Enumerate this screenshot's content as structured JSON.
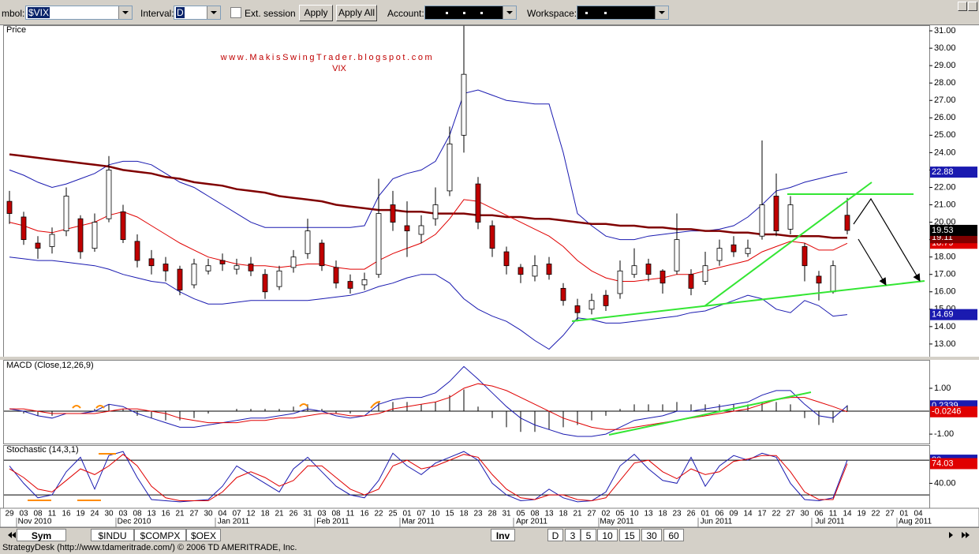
{
  "toolbar": {
    "symbol_label": "mbol:",
    "symbol": "$VIX",
    "interval_label": "Interval:",
    "interval": "D",
    "ext_session": "Ext. session",
    "apply": "Apply",
    "apply_all": "Apply All",
    "account_label": "Account:",
    "workspace_label": "Workspace:"
  },
  "x_axis": {
    "days": [
      "29",
      "03",
      "08",
      "11",
      "16",
      "19",
      "24",
      "30",
      "03",
      "08",
      "13",
      "16",
      "21",
      "27",
      "30",
      "04",
      "07",
      "12",
      "18",
      "21",
      "26",
      "31",
      "03",
      "08",
      "11",
      "16",
      "22",
      "25",
      "01",
      "07",
      "10",
      "15",
      "18",
      "23",
      "28",
      "31",
      "05",
      "08",
      "13",
      "18",
      "21",
      "27",
      "02",
      "05",
      "10",
      "13",
      "18",
      "23",
      "26",
      "01",
      "06",
      "09",
      "14",
      "17",
      "22",
      "27",
      "30",
      "06",
      "11",
      "14",
      "19",
      "22",
      "27",
      "01",
      "04"
    ],
    "months": [
      "Nov 2010",
      "Dec 2010",
      "Jan 2011",
      "Feb 2011",
      "Mar 2011",
      "Apr 2011",
      "May 2011",
      "Jun 2011",
      "Jul 2011",
      "Aug 2011"
    ]
  },
  "chart_data": [
    {
      "type": "candlestick",
      "title": "Price",
      "watermark": "www.MakisSwingTrader.blogspot.com",
      "subtitle": "VIX",
      "up_color": "#ffffff",
      "down_color": "#c00000",
      "close_color": "#000000",
      "ylim": [
        12.27,
        31.32
      ],
      "yticks": [
        {
          "value": 13,
          "label": "13.00"
        },
        {
          "value": 14,
          "label": "14.00"
        },
        {
          "value": 15,
          "label": "15.00"
        },
        {
          "value": 16,
          "label": "16.00"
        },
        {
          "value": 17,
          "label": "17.00"
        },
        {
          "value": 18,
          "label": "18.00"
        },
        {
          "value": 19,
          "label": "19.00"
        },
        {
          "value": 20,
          "label": "20.00"
        },
        {
          "value": 21,
          "label": "21.00"
        },
        {
          "value": 22,
          "label": "22.00"
        },
        {
          "value": 23,
          "label": "23.00"
        },
        {
          "value": 24,
          "label": "24.00"
        },
        {
          "value": 25,
          "label": "25.00"
        },
        {
          "value": 26,
          "label": "26.00"
        },
        {
          "value": 27,
          "label": "27.00"
        },
        {
          "value": 28,
          "label": "28.00"
        },
        {
          "value": 29,
          "label": "29.00"
        },
        {
          "value": 30,
          "label": "30.00"
        },
        {
          "value": 31,
          "label": "31.00"
        }
      ],
      "ohlc": [
        [
          21.2,
          21.8,
          19.9,
          20.5
        ],
        [
          20.3,
          20.6,
          18.7,
          19.0
        ],
        [
          18.8,
          19.2,
          17.9,
          18.5
        ],
        [
          18.6,
          19.7,
          18.2,
          19.3
        ],
        [
          19.5,
          22.0,
          19.2,
          21.5
        ],
        [
          20.2,
          20.4,
          17.9,
          18.3
        ],
        [
          18.5,
          20.5,
          18.3,
          20.0
        ],
        [
          20.2,
          23.8,
          20.0,
          23.0
        ],
        [
          20.6,
          21.0,
          18.8,
          19.0
        ],
        [
          18.9,
          19.3,
          17.4,
          17.8
        ],
        [
          17.9,
          18.4,
          17.0,
          17.5
        ],
        [
          17.6,
          18.0,
          16.6,
          17.2
        ],
        [
          17.3,
          17.5,
          15.8,
          16.1
        ],
        [
          16.4,
          17.9,
          16.2,
          17.6
        ],
        [
          17.2,
          17.9,
          17.0,
          17.5
        ],
        [
          17.8,
          18.2,
          17.2,
          17.6
        ],
        [
          17.3,
          17.9,
          17.0,
          17.5
        ],
        [
          17.6,
          18.0,
          16.9,
          17.2
        ],
        [
          17.0,
          17.3,
          15.6,
          16.0
        ],
        [
          16.3,
          17.5,
          16.1,
          17.2
        ],
        [
          17.4,
          18.4,
          17.1,
          18.0
        ],
        [
          18.2,
          20.2,
          17.9,
          19.5
        ],
        [
          18.8,
          19.0,
          17.2,
          17.5
        ],
        [
          17.4,
          17.8,
          16.2,
          16.5
        ],
        [
          16.6,
          17.0,
          15.9,
          16.2
        ],
        [
          16.4,
          17.1,
          16.1,
          16.7
        ],
        [
          17.0,
          22.5,
          16.8,
          20.5
        ],
        [
          21.0,
          21.8,
          19.5,
          20.0
        ],
        [
          19.8,
          21.2,
          18.0,
          19.5
        ],
        [
          19.3,
          20.4,
          18.8,
          19.8
        ],
        [
          20.2,
          22.0,
          19.8,
          21.0
        ],
        [
          21.8,
          25.5,
          21.5,
          24.5
        ],
        [
          25.0,
          31.3,
          24.0,
          28.5
        ],
        [
          22.2,
          22.6,
          19.6,
          20.0
        ],
        [
          19.8,
          20.1,
          18.0,
          18.5
        ],
        [
          18.3,
          18.6,
          17.0,
          17.5
        ],
        [
          17.4,
          17.6,
          16.5,
          17.0
        ],
        [
          16.9,
          18.1,
          16.6,
          17.5
        ],
        [
          17.6,
          18.0,
          16.7,
          17.0
        ],
        [
          16.2,
          16.5,
          15.2,
          15.5
        ],
        [
          15.2,
          15.6,
          14.3,
          14.8
        ],
        [
          15.0,
          15.9,
          14.7,
          15.5
        ],
        [
          15.8,
          16.1,
          14.9,
          15.2
        ],
        [
          15.9,
          17.8,
          15.6,
          17.2
        ],
        [
          17.0,
          18.5,
          16.8,
          17.5
        ],
        [
          17.6,
          17.9,
          16.6,
          17.0
        ],
        [
          17.2,
          17.3,
          15.9,
          16.5
        ],
        [
          17.2,
          20.5,
          17.0,
          19.0
        ],
        [
          17.0,
          17.3,
          15.8,
          16.2
        ],
        [
          16.6,
          18.3,
          16.4,
          17.5
        ],
        [
          17.8,
          19.0,
          17.5,
          18.5
        ],
        [
          18.7,
          19.2,
          18.0,
          18.3
        ],
        [
          18.2,
          19.0,
          18.0,
          18.5
        ],
        [
          19.2,
          24.7,
          19.0,
          21.0
        ],
        [
          21.5,
          22.8,
          19.2,
          19.5
        ],
        [
          19.6,
          21.5,
          19.3,
          21.0
        ],
        [
          18.6,
          18.8,
          16.6,
          17.5
        ],
        [
          16.9,
          17.2,
          15.5,
          16.5
        ],
        [
          16.0,
          17.8,
          15.9,
          17.5
        ],
        [
          20.4,
          21.4,
          19.3,
          19.53
        ],
        null,
        null,
        null,
        null,
        null
      ],
      "overlays": [
        {
          "color": "#1a1ab0",
          "width": 1,
          "values": [
            23.0,
            22.7,
            22.3,
            22.0,
            22.2,
            22.5,
            22.8,
            23.3,
            23.5,
            23.5,
            23.3,
            22.8,
            22.3,
            22.0,
            21.5,
            21.0,
            20.5,
            20.0,
            19.7,
            19.7,
            19.7,
            19.7,
            19.7,
            19.7,
            19.7,
            19.8,
            21.5,
            22.5,
            22.8,
            23.0,
            23.5,
            25.0,
            27.4,
            27.6,
            27.3,
            27.0,
            26.9,
            26.8,
            26.8,
            24.0,
            20.5,
            19.8,
            19.2,
            19.0,
            19.0,
            19.2,
            19.3,
            19.4,
            19.5,
            19.5,
            19.6,
            19.8,
            20.3,
            21.0,
            21.8,
            22.0,
            22.3,
            22.5,
            22.7,
            22.88,
            null,
            null,
            null,
            null,
            null
          ]
        },
        {
          "color": "#1a1ab0",
          "width": 1,
          "values": [
            18.0,
            17.9,
            17.8,
            17.8,
            17.7,
            17.6,
            17.5,
            17.3,
            17.0,
            16.8,
            16.6,
            16.5,
            16.0,
            15.6,
            15.3,
            15.3,
            15.4,
            15.5,
            15.5,
            15.5,
            15.5,
            15.5,
            15.6,
            15.7,
            15.8,
            16.0,
            16.3,
            16.5,
            16.8,
            17.0,
            17.0,
            16.5,
            15.6,
            15.0,
            14.6,
            14.3,
            13.8,
            13.2,
            12.7,
            13.5,
            14.5,
            14.4,
            14.2,
            14.2,
            14.3,
            14.4,
            14.5,
            14.6,
            14.8,
            14.9,
            15.2,
            15.5,
            15.8,
            15.6,
            15.0,
            14.8,
            15.5,
            15.2,
            14.6,
            14.69,
            null,
            null,
            null,
            null,
            null
          ]
        },
        {
          "color": "#800000",
          "width": 2.5,
          "values": [
            23.9,
            23.8,
            23.7,
            23.6,
            23.5,
            23.4,
            23.3,
            23.2,
            23.0,
            22.9,
            22.8,
            22.6,
            22.5,
            22.3,
            22.2,
            22.1,
            21.9,
            21.8,
            21.7,
            21.5,
            21.4,
            21.3,
            21.2,
            21.0,
            20.9,
            20.8,
            20.7,
            20.7,
            20.6,
            20.6,
            20.5,
            20.5,
            20.5,
            20.4,
            20.4,
            20.3,
            20.3,
            20.2,
            20.2,
            20.1,
            20.0,
            19.9,
            19.9,
            19.8,
            19.8,
            19.7,
            19.7,
            19.6,
            19.6,
            19.5,
            19.5,
            19.4,
            19.4,
            19.3,
            19.3,
            19.2,
            19.2,
            19.2,
            19.1,
            19.11,
            null,
            null,
            null,
            null,
            null
          ]
        },
        {
          "color": "#e00000",
          "width": 1,
          "values": [
            20.0,
            19.8,
            19.5,
            19.4,
            19.6,
            19.8,
            20.0,
            20.4,
            20.6,
            20.3,
            19.8,
            19.3,
            18.8,
            18.4,
            18.0,
            17.8,
            17.6,
            17.5,
            17.5,
            17.4,
            17.5,
            17.6,
            17.6,
            17.4,
            17.3,
            17.3,
            17.8,
            18.2,
            18.5,
            18.8,
            19.3,
            20.2,
            21.3,
            21.2,
            20.8,
            20.4,
            20.0,
            19.6,
            19.2,
            18.6,
            17.8,
            17.2,
            16.8,
            16.6,
            16.6,
            16.7,
            16.8,
            17.0,
            17.0,
            17.2,
            17.4,
            17.6,
            17.8,
            18.3,
            18.6,
            18.9,
            18.8,
            18.4,
            18.4,
            18.79,
            null,
            null,
            null,
            null,
            null
          ]
        }
      ]
    },
    {
      "type": "macd",
      "title": "MACD (Close,12,26,9)",
      "ylim": [
        -1.41,
        2.24
      ],
      "yticks": [
        {
          "value": 1,
          "label": "1.00"
        },
        {
          "value": -1,
          "label": "-1.00"
        }
      ],
      "levels": [
        0
      ],
      "histogram_color": "#000000",
      "histogram": [
        0.0,
        -0.1,
        -0.2,
        -0.2,
        0.0,
        0.0,
        0.1,
        0.3,
        0.1,
        -0.2,
        -0.3,
        -0.4,
        -0.4,
        -0.3,
        -0.1,
        0.0,
        0.1,
        0.1,
        0.1,
        0.1,
        0.2,
        0.3,
        0.1,
        -0.1,
        -0.1,
        0.0,
        0.4,
        0.4,
        0.4,
        0.3,
        0.4,
        0.7,
        0.95,
        0.2,
        -0.3,
        -0.7,
        -0.9,
        -0.9,
        -0.8,
        -0.7,
        -0.6,
        -0.4,
        -0.2,
        0.1,
        0.3,
        0.3,
        0.3,
        0.4,
        0.3,
        0.3,
        0.3,
        0.3,
        0.3,
        0.4,
        0.4,
        0.3,
        -0.3,
        -0.6,
        -0.5,
        0.26,
        null,
        null,
        null,
        null,
        null
      ],
      "series": [
        {
          "color": "#1a1ab0",
          "values": [
            0.1,
            0.0,
            -0.2,
            -0.3,
            -0.1,
            -0.1,
            0.0,
            0.3,
            0.2,
            -0.1,
            -0.3,
            -0.5,
            -0.7,
            -0.7,
            -0.6,
            -0.5,
            -0.4,
            -0.3,
            -0.3,
            -0.2,
            -0.1,
            0.1,
            0.0,
            -0.2,
            -0.3,
            -0.2,
            0.3,
            0.5,
            0.6,
            0.6,
            0.8,
            1.3,
            1.95,
            1.4,
            0.8,
            0.2,
            -0.3,
            -0.6,
            -0.8,
            -1.0,
            -1.1,
            -1.1,
            -1.0,
            -0.7,
            -0.4,
            -0.3,
            -0.2,
            0.0,
            0.0,
            0.1,
            0.2,
            0.3,
            0.4,
            0.7,
            0.9,
            0.9,
            0.3,
            -0.2,
            -0.3,
            0.2339,
            null,
            null,
            null,
            null,
            null
          ]
        },
        {
          "color": "#e00000",
          "values": [
            0.1,
            0.1,
            0.0,
            -0.1,
            -0.1,
            -0.1,
            -0.1,
            0.0,
            0.1,
            0.1,
            0.0,
            -0.1,
            -0.3,
            -0.4,
            -0.5,
            -0.5,
            -0.5,
            -0.4,
            -0.4,
            -0.3,
            -0.3,
            -0.2,
            -0.1,
            -0.1,
            -0.2,
            -0.2,
            -0.1,
            0.1,
            0.2,
            0.3,
            0.4,
            0.6,
            1.0,
            1.2,
            1.1,
            0.9,
            0.6,
            0.3,
            0.0,
            -0.3,
            -0.5,
            -0.7,
            -0.8,
            -0.8,
            -0.7,
            -0.6,
            -0.5,
            -0.4,
            -0.3,
            -0.2,
            -0.1,
            0.0,
            0.1,
            0.3,
            0.5,
            0.6,
            0.6,
            0.4,
            0.2,
            -0.0246,
            null,
            null,
            null,
            null,
            null
          ]
        }
      ]
    },
    {
      "type": "stochastic",
      "title": "Stochastic (14,3,1)",
      "ylim": [
        -3,
        106
      ],
      "yticks": [
        {
          "value": 40,
          "label": "40.00"
        }
      ],
      "levels": [
        20,
        80
      ],
      "series": [
        {
          "color": "#1a1ab0",
          "values": [
            70,
            40,
            15,
            20,
            60,
            85,
            30,
            88,
            95,
            50,
            12,
            10,
            8,
            10,
            12,
            35,
            70,
            55,
            40,
            25,
            65,
            85,
            60,
            35,
            20,
            15,
            45,
            92,
            70,
            55,
            75,
            85,
            95,
            80,
            40,
            20,
            10,
            12,
            30,
            15,
            8,
            10,
            25,
            70,
            90,
            65,
            45,
            40,
            85,
            35,
            70,
            88,
            80,
            92,
            85,
            40,
            12,
            10,
            15,
            80,
            null,
            null,
            null,
            null,
            null
          ]
        },
        {
          "color": "#e00000",
          "values": [
            65,
            50,
            30,
            25,
            45,
            65,
            55,
            70,
            90,
            70,
            35,
            15,
            10,
            10,
            10,
            25,
            50,
            60,
            50,
            35,
            45,
            70,
            70,
            50,
            30,
            20,
            30,
            70,
            80,
            65,
            70,
            80,
            90,
            85,
            55,
            30,
            15,
            12,
            20,
            20,
            12,
            10,
            15,
            45,
            75,
            80,
            60,
            48,
            65,
            55,
            60,
            78,
            82,
            88,
            88,
            60,
            25,
            12,
            12,
            74.03,
            null,
            null,
            null,
            null,
            null
          ]
        }
      ]
    }
  ],
  "tabs": {
    "symbols": [
      "Sym",
      "$INDU",
      "$COMPX",
      "$OEX"
    ],
    "inv": "Inv",
    "intervals": [
      "D",
      "3",
      "5",
      "10",
      "15",
      "30",
      "60"
    ]
  },
  "status": "StrategyDesk (http://www.tdameritrade.com/) © 2006 TD AMERITRADE, Inc."
}
